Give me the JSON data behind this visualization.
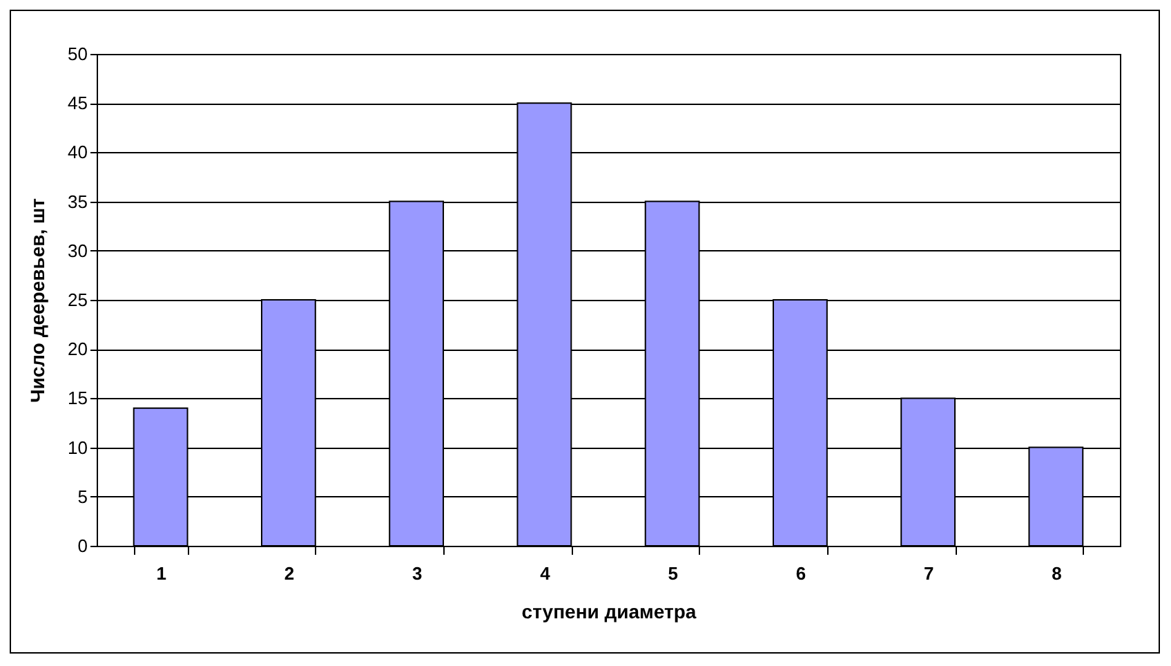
{
  "chart_data": {
    "type": "bar",
    "xlabel": "ступени диаметра",
    "ylabel": "Число дееревьев, шт",
    "categories": [
      "1",
      "2",
      "3",
      "4",
      "5",
      "6",
      "7",
      "8"
    ],
    "values": [
      14,
      25,
      35,
      45,
      35,
      25,
      15,
      10
    ],
    "color": "#9999ff",
    "ylim": [
      0,
      50
    ],
    "yticks": [
      0,
      5,
      10,
      15,
      20,
      25,
      30,
      35,
      40,
      45,
      50
    ],
    "grid": "y"
  }
}
